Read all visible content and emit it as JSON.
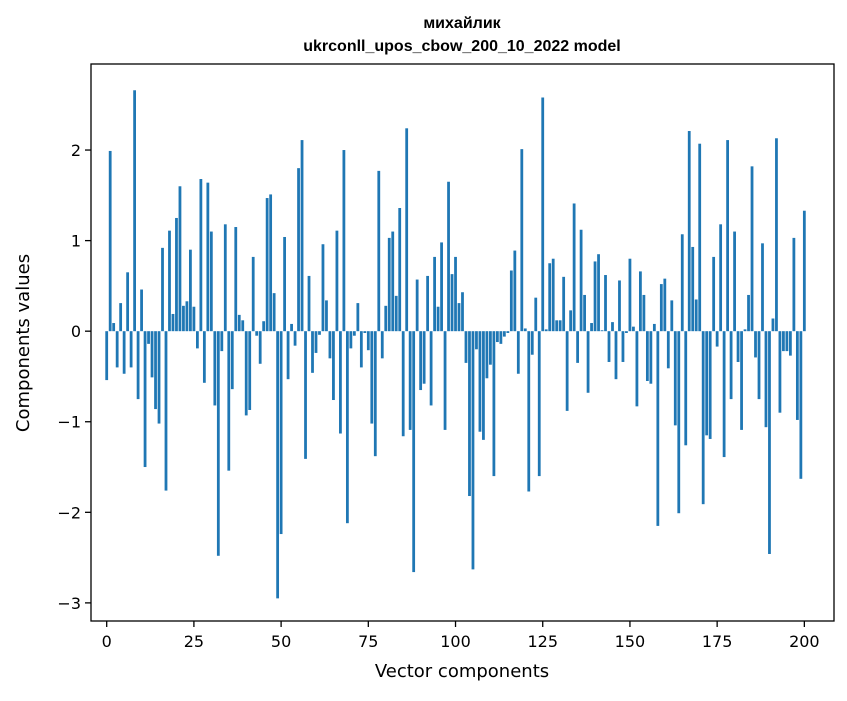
{
  "chart_data": {
    "type": "bar",
    "title_line1": "михайлик",
    "title_line2": "ukrconll_upos_cbow_200_10_2022 model",
    "xlabel": "Vector components",
    "ylabel": "Components values",
    "xlim": [
      -4.5,
      208.5
    ],
    "ylim": [
      -3.2,
      2.95
    ],
    "xticks": [
      0,
      25,
      50,
      75,
      100,
      125,
      150,
      175,
      200
    ],
    "xtick_labels": [
      "0",
      "25",
      "50",
      "75",
      "100",
      "125",
      "150",
      "175",
      "200"
    ],
    "yticks": [
      -3,
      -2,
      -1,
      0,
      1,
      2
    ],
    "ytick_labels": [
      "−3",
      "−2",
      "−1",
      "0",
      "1",
      "2"
    ],
    "bar_color": "#1f77b4",
    "values": [
      -0.54,
      1.99,
      0.09,
      -0.4,
      0.31,
      -0.47,
      0.65,
      -0.4,
      2.66,
      -0.75,
      0.46,
      -1.5,
      -0.14,
      -0.51,
      -0.86,
      -1.02,
      0.92,
      -1.76,
      1.11,
      0.19,
      1.25,
      1.6,
      0.28,
      0.33,
      0.9,
      0.27,
      -0.19,
      1.68,
      -0.57,
      1.64,
      1.1,
      -0.82,
      -2.48,
      -0.22,
      1.18,
      -1.54,
      -0.64,
      1.15,
      0.18,
      0.12,
      -0.93,
      -0.87,
      0.82,
      -0.05,
      -0.36,
      0.11,
      1.47,
      1.51,
      0.42,
      -2.95,
      -2.24,
      1.04,
      -0.53,
      0.08,
      -0.16,
      1.8,
      2.11,
      -1.41,
      0.61,
      -0.46,
      -0.24,
      -0.04,
      0.96,
      0.34,
      -0.3,
      -0.76,
      1.11,
      -1.13,
      2.0,
      -2.12,
      -0.19,
      -0.05,
      0.31,
      -0.4,
      -0.02,
      -0.21,
      -1.02,
      -1.38,
      1.77,
      -0.3,
      0.28,
      1.03,
      1.1,
      0.39,
      1.36,
      -1.16,
      2.24,
      -1.09,
      -2.66,
      0.57,
      -0.65,
      -0.58,
      0.61,
      -0.82,
      0.82,
      0.27,
      0.98,
      -1.09,
      1.65,
      0.63,
      0.82,
      0.31,
      0.43,
      -0.35,
      -1.82,
      -2.63,
      -0.2,
      -1.11,
      -1.2,
      -0.52,
      -0.37,
      -1.6,
      -0.12,
      -0.14,
      -0.06,
      -0.02,
      0.67,
      0.89,
      -0.47,
      2.01,
      0.03,
      -1.77,
      -0.26,
      0.37,
      -1.6,
      2.58,
      0.02,
      0.75,
      0.8,
      0.12,
      0.12,
      0.6,
      -0.88,
      0.23,
      1.41,
      -0.35,
      1.12,
      0.4,
      -0.68,
      0.09,
      0.77,
      0.85,
      0.01,
      0.62,
      -0.34,
      0.1,
      -0.53,
      0.56,
      -0.34,
      -0.02,
      0.8,
      0.05,
      -0.83,
      0.66,
      0.4,
      -0.55,
      -0.58,
      0.08,
      -2.15,
      0.52,
      0.58,
      -0.41,
      0.34,
      -1.04,
      -2.01,
      1.07,
      -1.26,
      2.21,
      0.93,
      0.35,
      2.07,
      -1.91,
      -1.15,
      -1.19,
      0.82,
      -0.17,
      1.18,
      -1.39,
      2.11,
      -0.75,
      1.1,
      -0.34,
      -1.09,
      0.02,
      0.4,
      1.82,
      -0.29,
      -0.75,
      0.97,
      -1.06,
      -2.46,
      0.14,
      2.13,
      -0.9,
      -0.22,
      -0.22,
      -0.27,
      1.03,
      -0.98,
      -1.63,
      1.33
    ]
  }
}
